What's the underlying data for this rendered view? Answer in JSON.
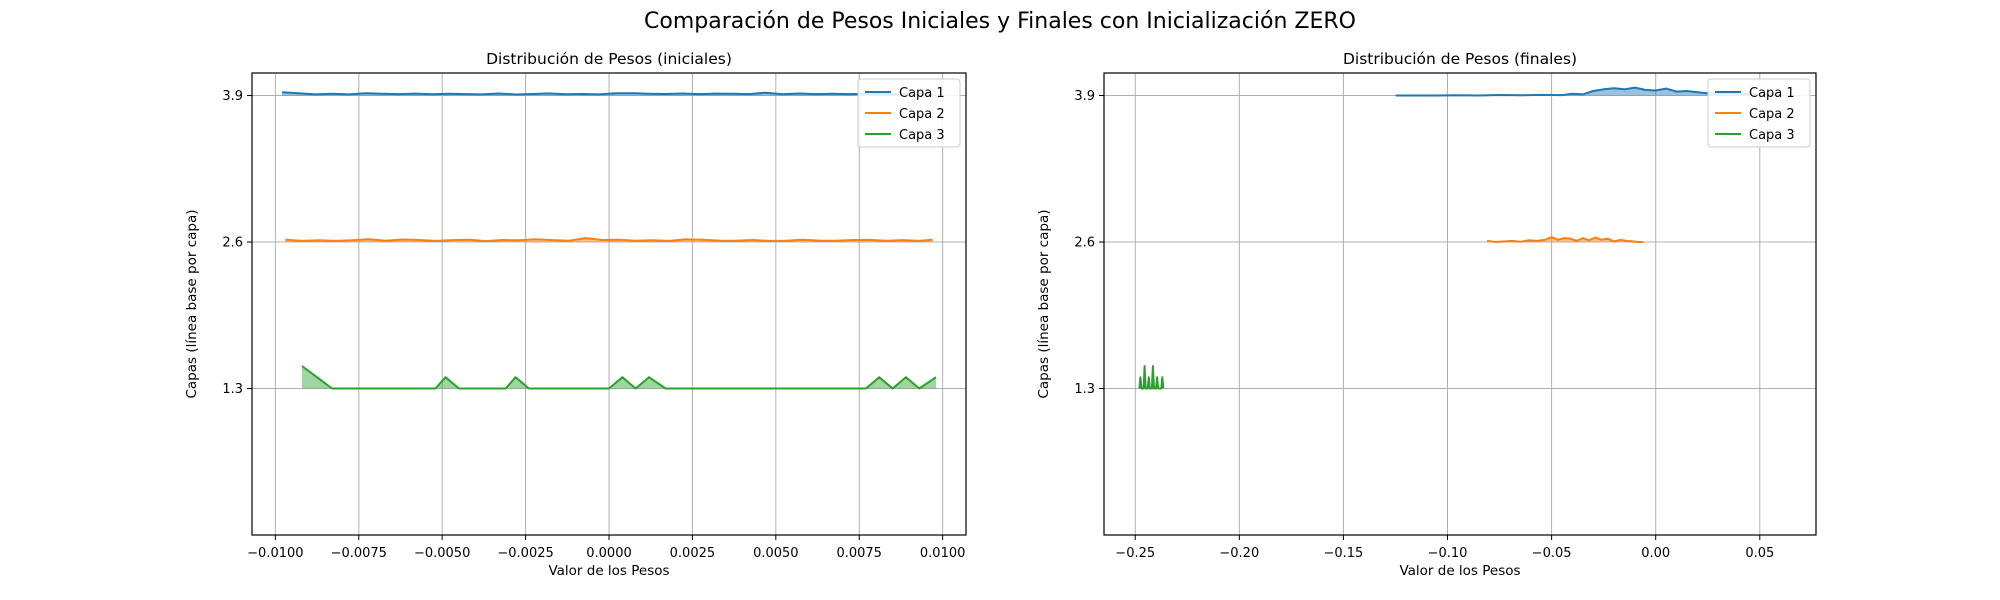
{
  "figure": {
    "title": "Comparación de Pesos Iniciales y Finales con Inicialización ZERO"
  },
  "colors": {
    "capa1": "#1f77b4",
    "capa2": "#ff7f0e",
    "capa3": "#2ca02c",
    "grid": "#b0b0b0",
    "axes": "#000000"
  },
  "chart_data": [
    {
      "type": "line",
      "title": "Distribución de Pesos (iniciales)",
      "xlabel": "Valor de los Pesos",
      "ylabel": "Capas (línea base por capa)",
      "xlim": [
        -0.0107,
        0.0107
      ],
      "ylim": [
        0.0,
        4.1
      ],
      "xticks": [
        -0.01,
        -0.0075,
        -0.005,
        -0.0025,
        0.0,
        0.0025,
        0.005,
        0.0075,
        0.01
      ],
      "xtick_labels": [
        "−0.0100",
        "−0.0075",
        "−0.0050",
        "−0.0025",
        "0.0000",
        "0.0025",
        "0.0050",
        "0.0075",
        "0.0100"
      ],
      "yticks": [
        1.3,
        2.6,
        3.9
      ],
      "ytick_labels": [
        "1.3",
        "2.6",
        "3.9"
      ],
      "grid": true,
      "legend": "top-right",
      "series": [
        {
          "name": "Capa 1",
          "baseline": 3.9,
          "x": [
            -0.0098,
            -0.0093,
            -0.0088,
            -0.0083,
            -0.0078,
            -0.0073,
            -0.0068,
            -0.0063,
            -0.0058,
            -0.0053,
            -0.0048,
            -0.0043,
            -0.0038,
            -0.0033,
            -0.0028,
            -0.0023,
            -0.0018,
            -0.0013,
            -0.0008,
            -0.0003,
            0.0002,
            0.0007,
            0.0012,
            0.0017,
            0.0022,
            0.0027,
            0.0032,
            0.0037,
            0.0042,
            0.0047,
            0.0052,
            0.0057,
            0.0062,
            0.0067,
            0.0072,
            0.0077,
            0.0082,
            0.0087,
            0.0092,
            0.0097
          ],
          "y": [
            3.93,
            3.92,
            3.91,
            3.915,
            3.91,
            3.92,
            3.915,
            3.913,
            3.917,
            3.912,
            3.915,
            3.913,
            3.91,
            3.918,
            3.909,
            3.914,
            3.919,
            3.912,
            3.914,
            3.91,
            3.92,
            3.921,
            3.916,
            3.914,
            3.918,
            3.913,
            3.917,
            3.915,
            3.913,
            3.925,
            3.912,
            3.918,
            3.913,
            3.915,
            3.913,
            3.916,
            3.914,
            3.911,
            3.915,
            3.912
          ]
        },
        {
          "name": "Capa 2",
          "baseline": 2.6,
          "x": [
            -0.0097,
            -0.0092,
            -0.0087,
            -0.0082,
            -0.0077,
            -0.0072,
            -0.0067,
            -0.0062,
            -0.0057,
            -0.0052,
            -0.0047,
            -0.0042,
            -0.0037,
            -0.0032,
            -0.0027,
            -0.0022,
            -0.0017,
            -0.0012,
            -0.0007,
            -0.0002,
            0.0003,
            0.0008,
            0.0013,
            0.0018,
            0.0023,
            0.0028,
            0.0033,
            0.0038,
            0.0043,
            0.0048,
            0.0053,
            0.0058,
            0.0063,
            0.0068,
            0.0073,
            0.0078,
            0.0083,
            0.0088,
            0.0093,
            0.0097
          ],
          "y": [
            2.62,
            2.61,
            2.615,
            2.61,
            2.615,
            2.624,
            2.612,
            2.622,
            2.618,
            2.61,
            2.617,
            2.62,
            2.608,
            2.618,
            2.615,
            2.624,
            2.617,
            2.612,
            2.635,
            2.618,
            2.62,
            2.612,
            2.615,
            2.61,
            2.623,
            2.621,
            2.613,
            2.611,
            2.618,
            2.61,
            2.612,
            2.62,
            2.613,
            2.612,
            2.618,
            2.619,
            2.611,
            2.617,
            2.61,
            2.62
          ]
        },
        {
          "name": "Capa 3",
          "baseline": 1.3,
          "x": [
            -0.0092,
            -0.0083,
            -0.0052,
            -0.0049,
            -0.0045,
            -0.0031,
            -0.0028,
            -0.0024,
            -0.0008,
            -0.0004,
            0.0,
            0.0004,
            0.0008,
            0.0012,
            0.0017,
            0.0077,
            0.0081,
            0.0085,
            0.0089,
            0.0093,
            0.0098
          ],
          "y": [
            1.5,
            1.3,
            1.3,
            1.4,
            1.3,
            1.3,
            1.4,
            1.3,
            1.3,
            1.3,
            1.3,
            1.4,
            1.3,
            1.4,
            1.3,
            1.3,
            1.4,
            1.3,
            1.4,
            1.3,
            1.4
          ]
        }
      ]
    },
    {
      "type": "line",
      "title": "Distribución de Pesos (finales)",
      "xlabel": "Valor de los Pesos",
      "ylabel": "Capas (línea base por capa)",
      "xlim": [
        -0.265,
        0.077
      ],
      "ylim": [
        0.0,
        4.1
      ],
      "xticks": [
        -0.25,
        -0.2,
        -0.15,
        -0.1,
        -0.05,
        0.0,
        0.05
      ],
      "xtick_labels": [
        "−0.25",
        "−0.20",
        "−0.15",
        "−0.10",
        "−0.05",
        "0.00",
        "0.05"
      ],
      "yticks": [
        1.3,
        2.6,
        3.9
      ],
      "ytick_labels": [
        "1.3",
        "2.6",
        "3.9"
      ],
      "grid": true,
      "legend": "top-right",
      "series": [
        {
          "name": "Capa 1",
          "baseline": 3.9,
          "x": [
            -0.125,
            -0.115,
            -0.105,
            -0.095,
            -0.085,
            -0.075,
            -0.065,
            -0.055,
            -0.045,
            -0.04,
            -0.035,
            -0.03,
            -0.025,
            -0.02,
            -0.015,
            -0.01,
            -0.005,
            0.0,
            0.005,
            0.01,
            0.015,
            0.02,
            0.025,
            0.03,
            0.035,
            0.04,
            0.045,
            0.05,
            0.055,
            0.06
          ],
          "y": [
            3.9,
            3.9,
            3.9,
            3.903,
            3.9,
            3.905,
            3.902,
            3.906,
            3.904,
            3.915,
            3.91,
            3.94,
            3.955,
            3.965,
            3.955,
            3.97,
            3.95,
            3.945,
            3.962,
            3.935,
            3.94,
            3.93,
            3.92,
            3.915,
            3.925,
            3.91,
            3.915,
            3.905,
            3.91,
            3.9
          ]
        },
        {
          "name": "Capa 2",
          "baseline": 2.6,
          "x": [
            -0.081,
            -0.077,
            -0.073,
            -0.069,
            -0.065,
            -0.061,
            -0.057,
            -0.053,
            -0.05,
            -0.047,
            -0.044,
            -0.041,
            -0.038,
            -0.035,
            -0.032,
            -0.029,
            -0.026,
            -0.023,
            -0.02,
            -0.017,
            -0.014,
            -0.011,
            -0.008,
            -0.006
          ],
          "y": [
            2.61,
            2.6,
            2.605,
            2.61,
            2.602,
            2.615,
            2.61,
            2.62,
            2.645,
            2.62,
            2.635,
            2.63,
            2.61,
            2.635,
            2.615,
            2.64,
            2.62,
            2.63,
            2.605,
            2.62,
            2.61,
            2.605,
            2.6,
            2.6
          ]
        },
        {
          "name": "Capa 3",
          "baseline": 1.3,
          "x": [
            -0.248,
            -0.2475,
            -0.247,
            -0.246,
            -0.2455,
            -0.245,
            -0.244,
            -0.2435,
            -0.243,
            -0.242,
            -0.2415,
            -0.241,
            -0.24,
            -0.2395,
            -0.239,
            -0.2375,
            -0.237,
            -0.2365
          ],
          "y": [
            1.3,
            1.4,
            1.3,
            1.3,
            1.5,
            1.3,
            1.3,
            1.4,
            1.3,
            1.3,
            1.5,
            1.3,
            1.3,
            1.4,
            1.3,
            1.3,
            1.4,
            1.3
          ]
        }
      ]
    }
  ]
}
